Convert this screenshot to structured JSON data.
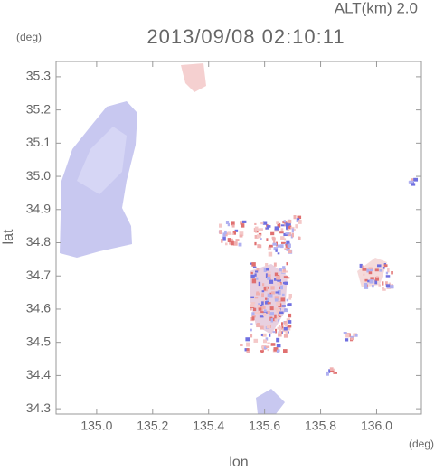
{
  "chart_data": {
    "type": "map",
    "title": "2013/09/08 02:10:11",
    "subtitle": "ALT(km) 2.0",
    "x_label": "lon",
    "y_label": "lat",
    "x_unit": "(deg)",
    "y_unit": "(deg)",
    "xlim": [
      134.855,
      136.16
    ],
    "xticks": [
      {
        "value": 135.0,
        "label": "135.0"
      },
      135.2,
      135.4,
      135.6,
      135.8,
      {
        "value": 136.0,
        "label": "136.0"
      }
    ],
    "ylim": [
      34.284,
      35.346
    ],
    "yticks": [
      34.3,
      34.4,
      34.5,
      34.6,
      34.7,
      34.8,
      34.9,
      {
        "value": 35.0,
        "label": "35.0"
      },
      35.1,
      35.2,
      35.3
    ]
  }
}
